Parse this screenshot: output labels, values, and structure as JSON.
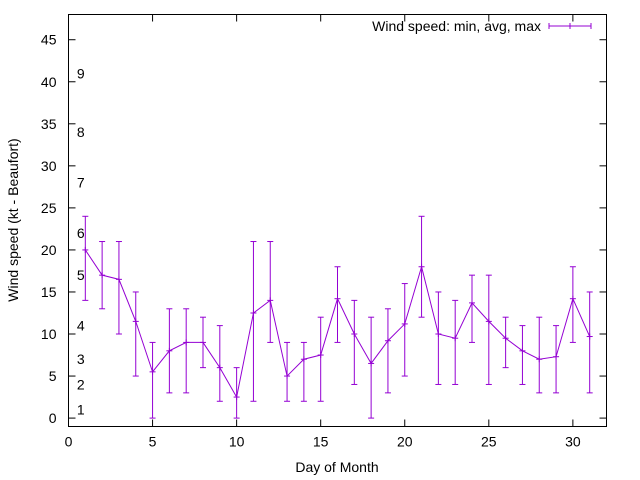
{
  "chart_data": {
    "type": "line",
    "title": "",
    "xlabel": "Day of Month",
    "ylabel": "Wind speed (kt - Beaufort)",
    "xlim": [
      0,
      32
    ],
    "ylim": [
      -1,
      48
    ],
    "xticks": [
      0,
      5,
      10,
      15,
      20,
      25,
      30
    ],
    "yticks": [
      0,
      5,
      10,
      15,
      20,
      25,
      30,
      35,
      40,
      45
    ],
    "grid": false,
    "legend": "top-right",
    "series": [
      {
        "name": "Wind speed: min, avg, max",
        "color": "#9400d3",
        "x": [
          1,
          2,
          3,
          4,
          5,
          6,
          7,
          8,
          9,
          10,
          11,
          12,
          13,
          14,
          15,
          16,
          17,
          18,
          19,
          20,
          21,
          22,
          23,
          24,
          25,
          26,
          27,
          28,
          29,
          30,
          31
        ],
        "avg": [
          20,
          17,
          16.5,
          11.5,
          5.5,
          8,
          9,
          9,
          6,
          2.5,
          12.5,
          14,
          5,
          7,
          7.5,
          14.2,
          10,
          6.5,
          9.2,
          11.2,
          18,
          10,
          9.5,
          13.7,
          11.5,
          9.5,
          8,
          7,
          7.3,
          14.2,
          9.7
        ],
        "min": [
          14,
          13,
          10,
          5,
          0,
          3,
          3,
          6,
          2,
          0,
          2,
          9,
          2,
          2,
          2,
          9,
          4,
          0,
          3,
          5,
          12,
          4,
          4,
          9,
          4,
          6,
          4,
          3,
          3,
          9,
          3
        ],
        "max": [
          24,
          21,
          21,
          15,
          9,
          13,
          13,
          12,
          11,
          6,
          21,
          21,
          9,
          9,
          12,
          18,
          14,
          12,
          13,
          16,
          24,
          15,
          14,
          17,
          17,
          12,
          11,
          12,
          11,
          18,
          15
        ]
      }
    ],
    "beaufort_labels": [
      {
        "label": "1",
        "y": 1
      },
      {
        "label": "2",
        "y": 4
      },
      {
        "label": "3",
        "y": 7
      },
      {
        "label": "4",
        "y": 11
      },
      {
        "label": "5",
        "y": 17
      },
      {
        "label": "6",
        "y": 22
      },
      {
        "label": "7",
        "y": 28
      },
      {
        "label": "8",
        "y": 34
      },
      {
        "label": "9",
        "y": 41
      }
    ]
  }
}
